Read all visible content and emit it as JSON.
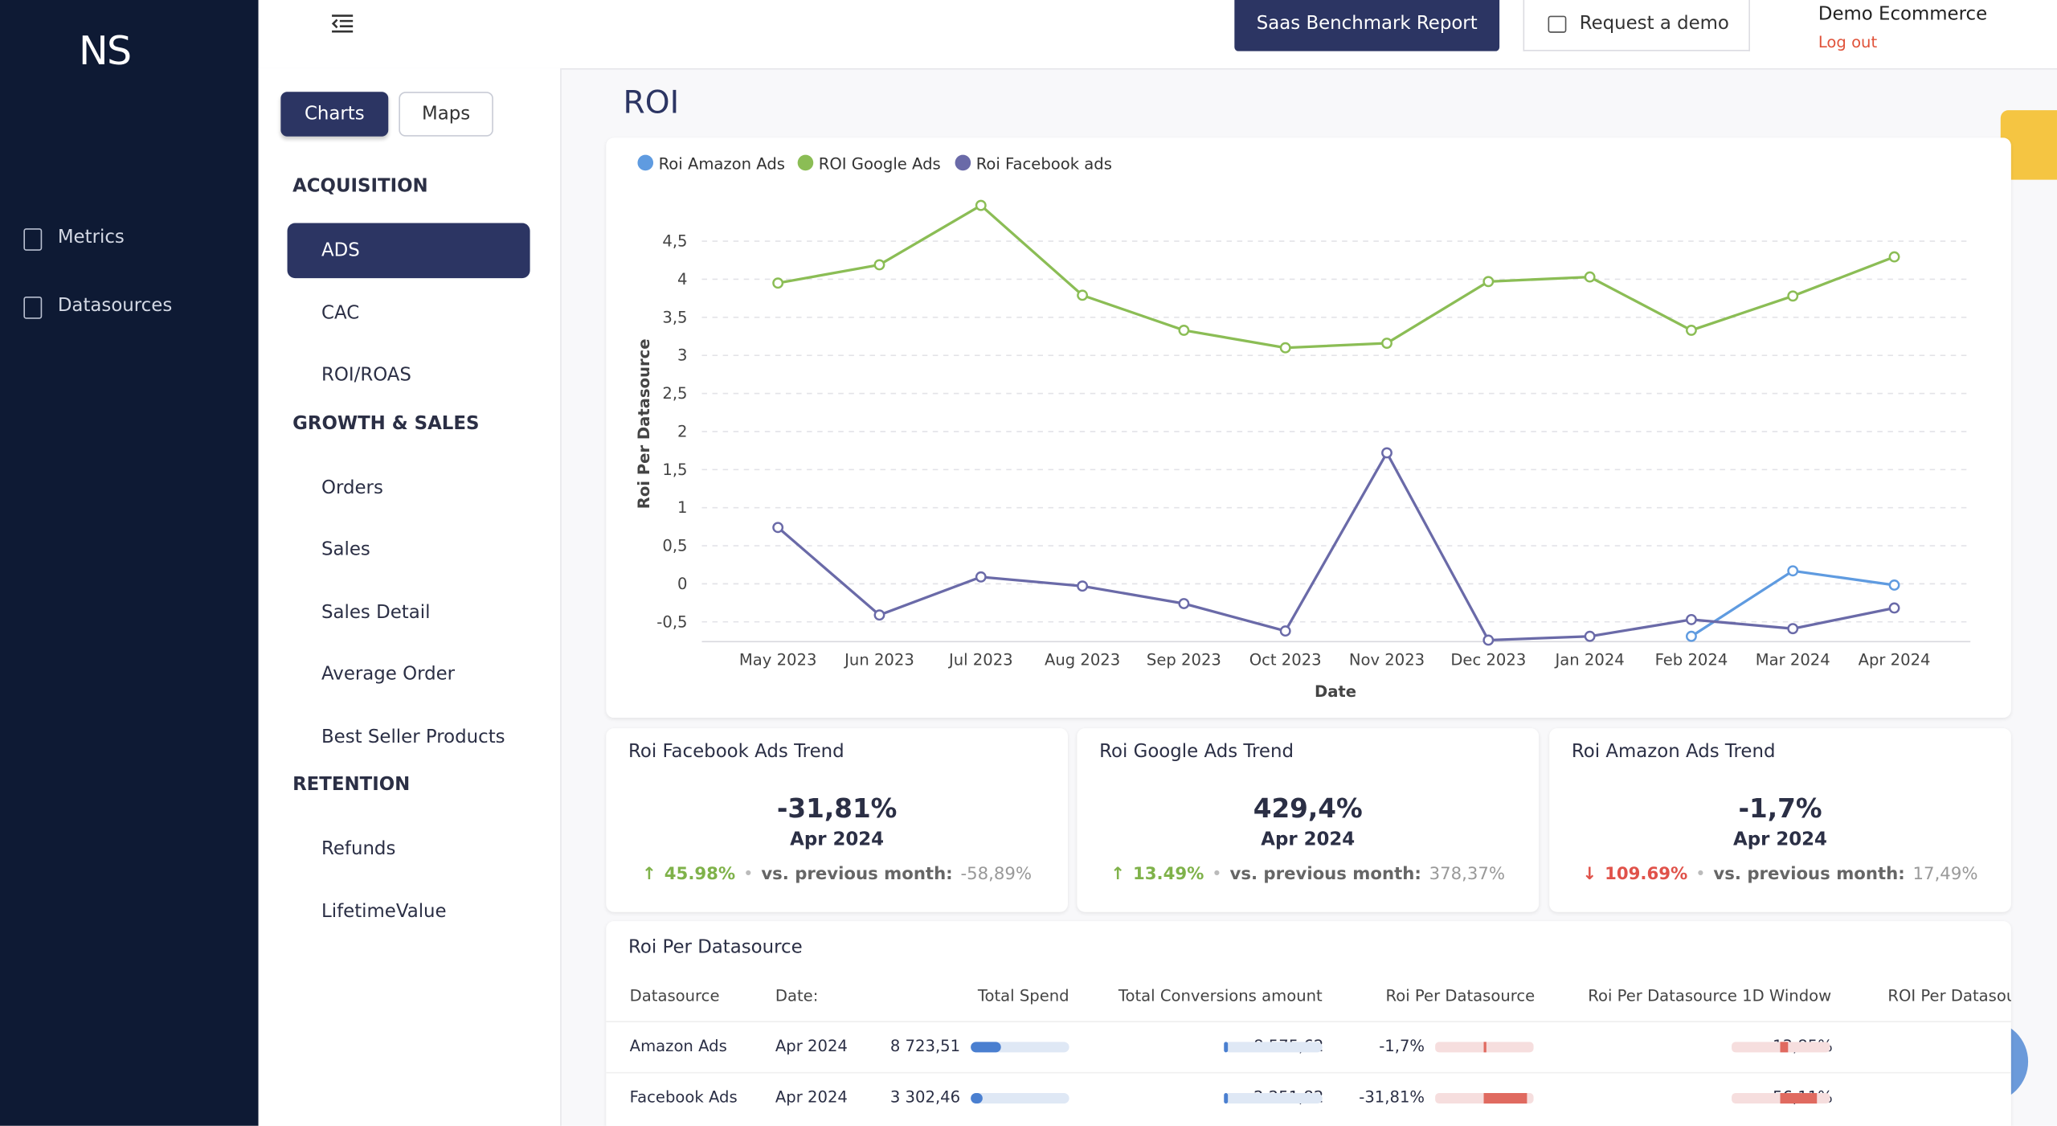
{
  "logo": "NS",
  "sidebar": {
    "nav": [
      "Metrics",
      "Datasources"
    ]
  },
  "topbar": {
    "buttons": [
      "Saas Benchmark Report",
      "Request a demo"
    ],
    "account": "Demo Ecommerce",
    "logout": "Log out"
  },
  "menu": {
    "tabs": [
      "Charts",
      "Maps"
    ],
    "sections": [
      {
        "title": "ACQUISITION",
        "items": [
          "ADS",
          "CAC",
          "ROI/ROAS"
        ]
      },
      {
        "title": "GROWTH & SALES",
        "items": [
          "Orders",
          "Sales",
          "Sales Detail",
          "Average Order",
          "Best Seller Products"
        ]
      },
      {
        "title": "RETENTION",
        "items": [
          "Refunds",
          "LifetimeValue"
        ]
      }
    ]
  },
  "page_title": "ROI",
  "chart_data": {
    "type": "line",
    "x_label": "Date",
    "y_label": "Roi Per Datasource",
    "categories": [
      "May 2023",
      "Jun 2023",
      "Jul 2023",
      "Aug 2023",
      "Sep 2023",
      "Oct 2023",
      "Nov 2023",
      "Dec 2023",
      "Jan 2024",
      "Feb 2024",
      "Mar 2024",
      "Apr 2024"
    ],
    "series": [
      {
        "name": "Roi Amazon Ads",
        "color": "#5f9be0",
        "values": [
          null,
          null,
          null,
          null,
          null,
          null,
          null,
          null,
          null,
          -0.69,
          0.17,
          -0.017
        ]
      },
      {
        "name": "ROI Google Ads",
        "color": "#8bbd55",
        "values": [
          3.95,
          4.19,
          4.97,
          3.79,
          3.33,
          3.1,
          3.16,
          3.97,
          4.03,
          3.33,
          3.78,
          4.294
        ]
      },
      {
        "name": "Roi Facebook ads",
        "color": "#6a6aa8",
        "values": [
          0.74,
          -0.41,
          0.09,
          -0.03,
          -0.26,
          -0.62,
          1.72,
          -0.74,
          -0.69,
          -0.47,
          -0.589,
          -0.318
        ]
      }
    ],
    "ylim": [
      -0.76,
      5.1
    ],
    "yticks": [
      {
        "value": -0.5,
        "label": "-0,5"
      },
      0,
      {
        "value": 0.5,
        "label": "0,5"
      },
      1,
      {
        "value": 1.5,
        "label": "1,5"
      },
      2,
      {
        "value": 2.5,
        "label": "2,5"
      },
      3,
      {
        "value": 3.5,
        "label": "3,5"
      },
      4,
      {
        "value": 4.5,
        "label": "4,5"
      }
    ],
    "grid": true
  },
  "cards": [
    {
      "title": "Roi Facebook Ads Trend",
      "value": "-31,81%",
      "period": "Apr 2024",
      "change": "45.98%",
      "direction": "up",
      "compare_label": "vs. previous month:",
      "compare_value": "-58,89%"
    },
    {
      "title": "Roi Google Ads Trend",
      "value": "429,4%",
      "period": "Apr 2024",
      "change": "13.49%",
      "direction": "up",
      "compare_label": "vs. previous month:",
      "compare_value": "378,37%"
    },
    {
      "title": "Roi Amazon Ads Trend",
      "value": "-1,7%",
      "period": "Apr 2024",
      "change": "109.69%",
      "direction": "down",
      "compare_label": "vs. previous month:",
      "compare_value": "17,49%"
    }
  ],
  "table": {
    "title": "Roi Per Datasource",
    "columns": [
      "Datasource",
      "Date:",
      "Total Spend",
      "Total Conversions amount",
      "Roi Per Datasource",
      "Roi Per Datasource 1D Window",
      "ROI Per Datasource"
    ],
    "rows": [
      [
        "Amazon Ads",
        "Apr 2024",
        "8 723,51",
        "8 575,62",
        "-1,7%",
        "-13,85%"
      ],
      [
        "Facebook Ads",
        "Apr 2024",
        "3 302,46",
        "2 251,82",
        "-31,81%",
        "-56,11%"
      ]
    ]
  }
}
